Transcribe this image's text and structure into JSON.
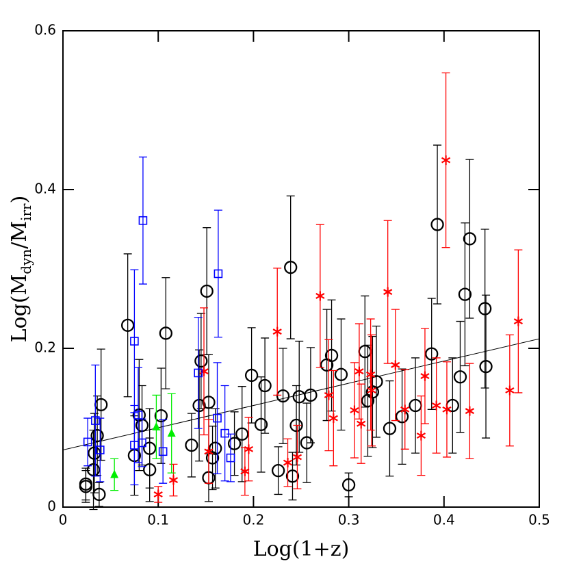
{
  "chart_data": {
    "type": "scatter",
    "xlabel": "Log(1+z)",
    "ylabel": [
      "Log(M",
      "dyn",
      "/M",
      "irr",
      ")"
    ],
    "xlim": [
      0,
      0.5
    ],
    "ylim": [
      0,
      0.6
    ],
    "xticks": [
      0,
      0.1,
      0.2,
      0.3,
      0.4,
      0.5
    ],
    "yticks": [
      0,
      0.2,
      0.4,
      0.6
    ],
    "fit": {
      "color": "#000000",
      "x": [
        0,
        0.5
      ],
      "y": [
        0.072,
        0.212
      ]
    },
    "series": [
      {
        "marker": "circle",
        "color": "#000000",
        "x": [
          0.024,
          0.024,
          0.032,
          0.033,
          0.036,
          0.038,
          0.04,
          0.068,
          0.075,
          0.08,
          0.083,
          0.091,
          0.091,
          0.103,
          0.108,
          0.135,
          0.143,
          0.145,
          0.151,
          0.153,
          0.153,
          0.157,
          0.16,
          0.18,
          0.188,
          0.198,
          0.208,
          0.212,
          0.226,
          0.231,
          0.239,
          0.241,
          0.245,
          0.248,
          0.256,
          0.26,
          0.277,
          0.282,
          0.292,
          0.3,
          0.317,
          0.32,
          0.325,
          0.329,
          0.343,
          0.356,
          0.37,
          0.387,
          0.393,
          0.409,
          0.417,
          0.422,
          0.427,
          0.443,
          0.444
        ],
        "values": [
          0.029,
          0.026,
          0.047,
          0.068,
          0.09,
          0.016,
          0.129,
          0.229,
          0.065,
          0.116,
          0.103,
          0.074,
          0.047,
          0.115,
          0.219,
          0.078,
          0.128,
          0.184,
          0.272,
          0.132,
          0.037,
          0.062,
          0.074,
          0.08,
          0.092,
          0.166,
          0.104,
          0.153,
          0.046,
          0.14,
          0.302,
          0.039,
          0.103,
          0.139,
          0.081,
          0.141,
          0.179,
          0.191,
          0.167,
          0.028,
          0.196,
          0.134,
          0.145,
          0.158,
          0.099,
          0.114,
          0.128,
          0.193,
          0.356,
          0.128,
          0.164,
          0.268,
          0.338,
          0.25,
          0.177
        ],
        "errors": [
          0.02,
          0.02,
          0.05,
          0.05,
          0.05,
          0.015,
          0.07,
          0.09,
          0.05,
          0.07,
          0.05,
          0.05,
          0.04,
          0.06,
          0.07,
          0.04,
          0.07,
          0.06,
          0.08,
          0.06,
          0.03,
          0.04,
          0.05,
          0.04,
          0.06,
          0.06,
          0.06,
          0.06,
          0.03,
          0.06,
          0.09,
          0.03,
          0.05,
          0.07,
          0.05,
          0.06,
          0.07,
          0.07,
          0.07,
          0.015,
          0.07,
          0.07,
          0.07,
          0.07,
          0.06,
          0.06,
          0.06,
          0.07,
          0.1,
          0.06,
          0.07,
          0.09,
          0.1,
          0.1,
          0.09
        ]
      },
      {
        "marker": "star",
        "color": "#ff0000",
        "x": [
          0.1,
          0.116,
          0.148,
          0.153,
          0.191,
          0.195,
          0.225,
          0.236,
          0.246,
          0.27,
          0.279,
          0.284,
          0.306,
          0.311,
          0.313,
          0.323,
          0.324,
          0.341,
          0.349,
          0.359,
          0.376,
          0.38,
          0.392,
          0.402,
          0.403,
          0.427,
          0.469,
          0.478
        ],
        "values": [
          0.016,
          0.034,
          0.171,
          0.07,
          0.045,
          0.073,
          0.221,
          0.056,
          0.063,
          0.266,
          0.141,
          0.112,
          0.122,
          0.171,
          0.105,
          0.167,
          0.147,
          0.271,
          0.179,
          0.123,
          0.09,
          0.165,
          0.128,
          0.437,
          0.123,
          0.121,
          0.147,
          0.234
        ],
        "errors": [
          0.01,
          0.02,
          0.08,
          0.04,
          0.03,
          0.04,
          0.08,
          0.03,
          0.04,
          0.09,
          0.07,
          0.06,
          0.06,
          0.06,
          0.05,
          0.07,
          0.07,
          0.09,
          0.07,
          0.05,
          0.05,
          0.06,
          0.06,
          0.11,
          0.06,
          0.06,
          0.07,
          0.09
        ]
      },
      {
        "marker": "square",
        "color": "#0000ff",
        "x": [
          0.026,
          0.034,
          0.039,
          0.075,
          0.075,
          0.079,
          0.083,
          0.084,
          0.105,
          0.142,
          0.162,
          0.163,
          0.17,
          0.176
        ],
        "values": [
          0.082,
          0.109,
          0.072,
          0.078,
          0.209,
          0.116,
          0.081,
          0.361,
          0.07,
          0.169,
          0.112,
          0.294,
          0.093,
          0.062
        ],
        "errors": [
          0.03,
          0.07,
          0.04,
          0.05,
          0.09,
          0.06,
          0.03,
          0.08,
          0.04,
          0.07,
          0.07,
          0.08,
          0.06,
          0.03
        ]
      },
      {
        "marker": "triangle",
        "color": "#00ee00",
        "x": [
          0.054,
          0.098,
          0.114
        ],
        "values": [
          0.041,
          0.101,
          0.093
        ],
        "errors": [
          0.02,
          0.04,
          0.05
        ]
      }
    ]
  }
}
